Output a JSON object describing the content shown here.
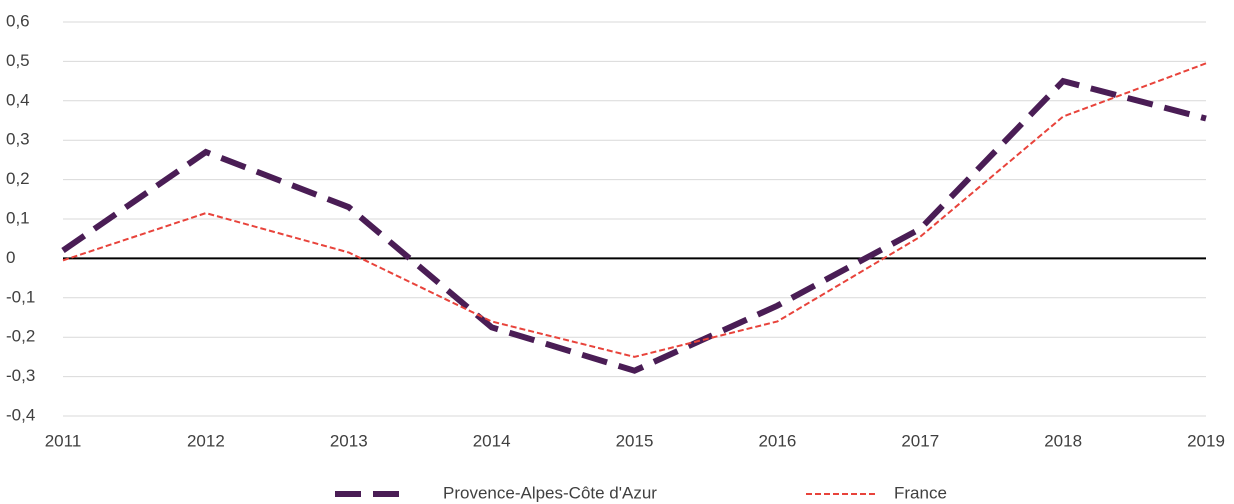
{
  "chart_data": {
    "type": "line",
    "x": [
      2011,
      2012,
      2013,
      2014,
      2015,
      2016,
      2017,
      2018,
      2019
    ],
    "series": [
      {
        "name": "Provence-Alpes-Côte d'Azur",
        "color": "#4a1d55",
        "values": [
          0.02,
          0.27,
          0.13,
          -0.175,
          -0.285,
          -0.12,
          0.075,
          0.45,
          0.355
        ]
      },
      {
        "name": "France",
        "color": "#e8433b",
        "values": [
          -0.005,
          0.115,
          0.015,
          -0.16,
          -0.25,
          -0.16,
          0.055,
          0.36,
          0.495
        ]
      }
    ],
    "xlim": [
      2011,
      2019
    ],
    "xticks": [
      2011,
      2012,
      2013,
      2014,
      2015,
      2016,
      2017,
      2018,
      2019
    ],
    "ylim": [
      -0.4,
      0.6
    ],
    "yticks": [
      {
        "value": -0.4,
        "label": "-0,4"
      },
      {
        "value": -0.3,
        "label": "-0,3"
      },
      {
        "value": -0.2,
        "label": "-0,2"
      },
      {
        "value": -0.1,
        "label": "-0,1"
      },
      0,
      {
        "value": 0.1,
        "label": "0,1"
      },
      {
        "value": 0.2,
        "label": "0,2"
      },
      {
        "value": 0.3,
        "label": "0,3"
      },
      {
        "value": 0.4,
        "label": "0,4"
      },
      {
        "value": 0.5,
        "label": "0,5"
      },
      {
        "value": 0.6,
        "label": "0,6"
      }
    ],
    "grid": true,
    "legend": "bottom"
  }
}
